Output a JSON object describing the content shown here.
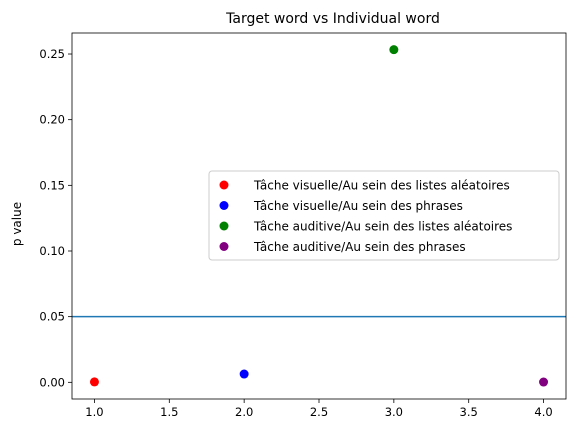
{
  "chart_data": {
    "type": "scatter",
    "title": "Target word vs Individual word",
    "xlabel": "",
    "ylabel": "p value",
    "xlim": [
      0.85,
      4.15
    ],
    "ylim": [
      -0.0127,
      0.266
    ],
    "xticks": [
      1.0,
      1.5,
      2.0,
      2.5,
      3.0,
      3.5,
      4.0
    ],
    "xtick_labels": [
      "1.0",
      "1.5",
      "2.0",
      "2.5",
      "3.0",
      "3.5",
      "4.0"
    ],
    "yticks": [
      0.0,
      0.05,
      0.1,
      0.15,
      0.2,
      0.25
    ],
    "ytick_labels": [
      "0.00",
      "0.05",
      "0.10",
      "0.15",
      "0.20",
      "0.25"
    ],
    "grid": false,
    "legend_position": "center-right",
    "hline": {
      "y": 0.05,
      "color": "#1f77b4"
    },
    "series": [
      {
        "name": "Tâche visuelle/Au sein des listes aléatoires",
        "color": "#ff0000",
        "x": [
          1
        ],
        "y": [
          0.0003
        ]
      },
      {
        "name": "Tâche visuelle/Au sein des phrases",
        "color": "#0000ff",
        "x": [
          2
        ],
        "y": [
          0.0063
        ]
      },
      {
        "name": "Tâche auditive/Au sein des listes aléatoires",
        "color": "#008000",
        "x": [
          3
        ],
        "y": [
          0.2533
        ]
      },
      {
        "name": "Tâche auditive/Au sein des phrases",
        "color": "#800080",
        "x": [
          4
        ],
        "y": [
          0.0002
        ]
      }
    ]
  }
}
